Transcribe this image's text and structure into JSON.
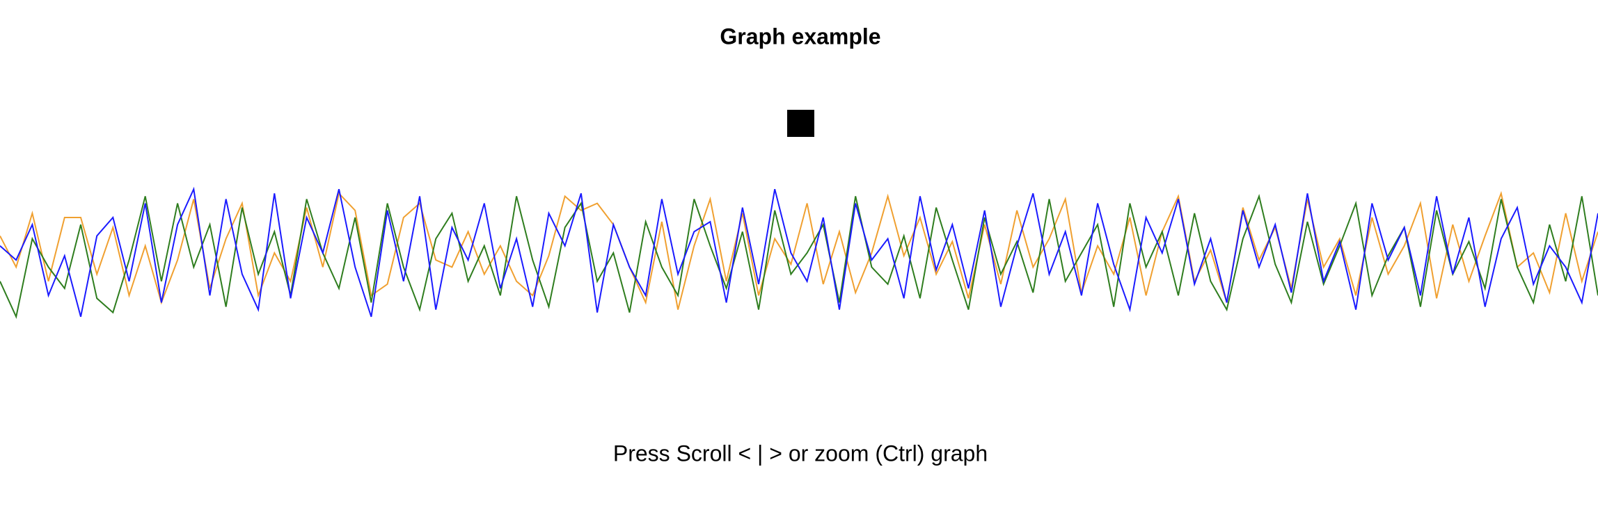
{
  "chart_data": {
    "type": "line",
    "title": "Graph example",
    "annotation": "Press Scroll < | > or zoom (Ctrl) graph",
    "ylim": [
      0,
      100
    ],
    "series": [
      {
        "color": "#f0a030",
        "values": [
          62,
          40,
          78,
          30,
          75,
          75,
          35,
          68,
          20,
          55,
          15,
          45,
          88,
          25,
          60,
          85,
          20,
          50,
          30,
          82,
          40,
          92,
          80,
          20,
          28,
          75,
          85,
          45,
          40,
          65,
          35,
          55,
          30,
          20,
          48,
          90,
          80,
          85,
          70,
          40,
          15,
          72,
          10,
          55,
          88,
          30,
          78,
          20,
          60,
          42,
          85,
          28,
          65,
          22,
          50,
          90,
          48,
          75,
          35,
          58,
          18,
          70,
          28,
          80,
          40,
          60,
          88,
          22,
          55,
          35,
          75,
          20,
          65,
          90,
          30,
          52,
          15,
          82,
          45,
          68,
          25,
          88,
          40,
          60,
          20,
          75,
          35,
          55,
          85,
          18,
          70,
          30,
          62,
          92,
          40,
          50,
          22,
          78,
          30,
          65
        ]
      },
      {
        "color": "#2e7d1e",
        "values": [
          30,
          5,
          60,
          40,
          25,
          70,
          18,
          8,
          45,
          90,
          30,
          85,
          40,
          70,
          12,
          82,
          35,
          65,
          20,
          88,
          50,
          25,
          75,
          15,
          85,
          40,
          10,
          60,
          78,
          30,
          55,
          20,
          90,
          45,
          12,
          68,
          85,
          30,
          50,
          8,
          72,
          40,
          20,
          88,
          55,
          25,
          65,
          10,
          80,
          35,
          50,
          70,
          15,
          90,
          40,
          28,
          62,
          18,
          82,
          45,
          10,
          75,
          35,
          58,
          22,
          88,
          30,
          50,
          70,
          12,
          85,
          40,
          65,
          20,
          78,
          30,
          10,
          60,
          90,
          42,
          15,
          72,
          28,
          55,
          85,
          20,
          48,
          68,
          12,
          80,
          35,
          58,
          25,
          88,
          40,
          15,
          70,
          30,
          90,
          20
        ]
      },
      {
        "color": "#1a1aff",
        "values": [
          55,
          45,
          70,
          20,
          48,
          5,
          62,
          75,
          30,
          85,
          15,
          70,
          95,
          20,
          88,
          35,
          10,
          92,
          18,
          75,
          50,
          95,
          40,
          5,
          80,
          30,
          90,
          10,
          68,
          45,
          85,
          25,
          60,
          12,
          78,
          55,
          92,
          8,
          70,
          40,
          20,
          88,
          35,
          65,
          72,
          15,
          82,
          28,
          95,
          50,
          30,
          75,
          10,
          85,
          45,
          60,
          18,
          90,
          38,
          70,
          25,
          80,
          12,
          55,
          92,
          35,
          65,
          20,
          85,
          42,
          10,
          75,
          50,
          88,
          28,
          60,
          15,
          80,
          40,
          70,
          22,
          92,
          30,
          58,
          10,
          85,
          45,
          68,
          20,
          90,
          35,
          75,
          12,
          60,
          82,
          28,
          55,
          40,
          15,
          78
        ]
      }
    ]
  }
}
